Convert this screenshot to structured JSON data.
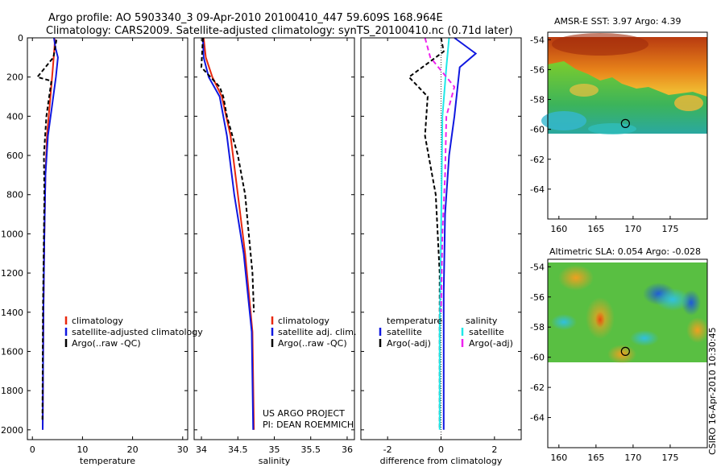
{
  "header": {
    "line1": "Argo profile: AO 5903340_3 09-Apr-2010 20100410_447 59.609S 168.964E",
    "line2": "Climatology: CARS2009. Satellite-adjusted climatology: synTS_20100410.nc (0.71d later)"
  },
  "footer": {
    "project": "US ARGO PROJECT",
    "pi": "PI: DEAN ROEMMICH",
    "stamp": "CSIRO 16-Apr-2010 10:30:45"
  },
  "colors": {
    "red": "#e8280e",
    "blue": "#1018e0",
    "black": "#000000",
    "cyan": "#20e8e8",
    "magenta": "#ee22ee"
  },
  "chart_data": [
    {
      "type": "line",
      "id": "temperature",
      "xlabel": "temperature",
      "xlim": [
        -1,
        31
      ],
      "ylim": [
        2050,
        0
      ],
      "xticks": [
        0,
        10,
        20,
        30
      ],
      "yticks": [
        0,
        200,
        400,
        600,
        800,
        1000,
        1200,
        1400,
        1600,
        1800,
        2000
      ],
      "legend": [
        "climatology",
        "satellite-adjusted climatology",
        "Argo(..raw -QC)"
      ],
      "series": [
        {
          "name": "climatology",
          "color": "red",
          "dash": "",
          "points": [
            [
              4.5,
              5
            ],
            [
              4.4,
              50
            ],
            [
              4.1,
              150
            ],
            [
              3.6,
              300
            ],
            [
              2.9,
              500
            ],
            [
              2.6,
              700
            ],
            [
              2.4,
              1000
            ],
            [
              2.2,
              1400
            ],
            [
              2.05,
              2000
            ]
          ]
        },
        {
          "name": "satellite-adjusted climatology",
          "color": "blue",
          "dash": "",
          "points": [
            [
              4.3,
              0
            ],
            [
              4.6,
              50
            ],
            [
              5.1,
              100
            ],
            [
              4.7,
              200
            ],
            [
              3.9,
              350
            ],
            [
              3.1,
              500
            ],
            [
              2.6,
              700
            ],
            [
              2.4,
              1000
            ],
            [
              2.2,
              1400
            ],
            [
              2.05,
              2000
            ]
          ]
        },
        {
          "name": "Argo(..raw -QC)",
          "color": "black",
          "dash": "5,3",
          "points": [
            [
              4.8,
              10
            ],
            [
              4.2,
              100
            ],
            [
              1.0,
              200
            ],
            [
              3.8,
              220
            ],
            [
              2.8,
              400
            ],
            [
              2.3,
              600
            ],
            [
              2.4,
              800
            ],
            [
              2.3,
              1000
            ],
            [
              2.1,
              1400
            ],
            [
              2.0,
              1950
            ]
          ]
        }
      ]
    },
    {
      "type": "line",
      "id": "salinity",
      "xlabel": "salinity",
      "xlim": [
        33.9,
        36.1
      ],
      "ylim": [
        2050,
        0
      ],
      "xticks": [
        34,
        34.5,
        35,
        35.5,
        36
      ],
      "yticks": [
        0,
        200,
        400,
        600,
        800,
        1000,
        1200,
        1400,
        1600,
        1800,
        2000
      ],
      "legend": [
        "climatology",
        "satellite adj. clim.",
        "Argo(..raw -QC)"
      ],
      "series": [
        {
          "name": "climatology",
          "color": "red",
          "dash": "",
          "points": [
            [
              34.03,
              0
            ],
            [
              34.06,
              100
            ],
            [
              34.15,
              200
            ],
            [
              34.28,
              300
            ],
            [
              34.4,
              500
            ],
            [
              34.5,
              800
            ],
            [
              34.6,
              1100
            ],
            [
              34.7,
              1500
            ],
            [
              34.72,
              2000
            ]
          ]
        },
        {
          "name": "satellite adj. clim.",
          "color": "blue",
          "dash": "",
          "points": [
            [
              34.02,
              0
            ],
            [
              34.03,
              100
            ],
            [
              34.1,
              200
            ],
            [
              34.25,
              300
            ],
            [
              34.35,
              500
            ],
            [
              34.45,
              800
            ],
            [
              34.58,
              1100
            ],
            [
              34.69,
              1500
            ],
            [
              34.71,
              2000
            ]
          ]
        },
        {
          "name": "Argo(..raw -QC)",
          "color": "black",
          "dash": "5,3",
          "points": [
            [
              34.02,
              0
            ],
            [
              34.0,
              150
            ],
            [
              34.25,
              250
            ],
            [
              34.3,
              300
            ],
            [
              34.35,
              400
            ],
            [
              34.5,
              600
            ],
            [
              34.6,
              800
            ],
            [
              34.65,
              1000
            ],
            [
              34.7,
              1200
            ],
            [
              34.72,
              1400
            ]
          ]
        }
      ]
    },
    {
      "type": "line",
      "id": "difference",
      "xlabel": "difference from climatology",
      "xlim": [
        -3,
        3
      ],
      "ylim": [
        2050,
        0
      ],
      "xticks": [
        -2,
        0,
        2
      ],
      "yticks": [
        0,
        200,
        400,
        600,
        800,
        1000,
        1200,
        1400,
        1600,
        1800,
        2000
      ],
      "legend_headers": [
        "temperature",
        "salinity"
      ],
      "legend": [
        "satellite",
        "Argo(-adj)",
        "satellite",
        "Argo(-adj)"
      ],
      "series": [
        {
          "name": "temperature satellite",
          "color": "blue",
          "dash": "",
          "points": [
            [
              0.5,
              0
            ],
            [
              1.3,
              80
            ],
            [
              0.7,
              150
            ],
            [
              0.5,
              400
            ],
            [
              0.3,
              600
            ],
            [
              0.15,
              900
            ],
            [
              0.1,
              1300
            ],
            [
              0.1,
              2000
            ]
          ]
        },
        {
          "name": "temperature Argo(-adj)",
          "color": "black",
          "dash": "5,3",
          "points": [
            [
              0.0,
              0
            ],
            [
              0.1,
              70
            ],
            [
              -1.2,
              200
            ],
            [
              -0.5,
              300
            ],
            [
              -0.6,
              500
            ],
            [
              -0.2,
              800
            ],
            [
              -0.05,
              1200
            ],
            [
              -0.05,
              2000
            ]
          ]
        },
        {
          "name": "salinity satellite",
          "color": "cyan",
          "dash": "",
          "points": [
            [
              0.3,
              0
            ],
            [
              0.2,
              150
            ],
            [
              0.05,
              400
            ],
            [
              0.0,
              1000
            ],
            [
              -0.05,
              1500
            ],
            [
              -0.05,
              2000
            ]
          ]
        },
        {
          "name": "salinity Argo(-adj)",
          "color": "magenta",
          "dash": "6,4",
          "points": [
            [
              -0.6,
              0
            ],
            [
              -0.4,
              100
            ],
            [
              0.5,
              250
            ],
            [
              0.2,
              400
            ],
            [
              0.15,
              700
            ],
            [
              0.05,
              1000
            ],
            [
              0.0,
              1400
            ]
          ]
        }
      ]
    },
    {
      "type": "heatmap",
      "id": "sst",
      "title": "AMSR-E SST: 3.97 Argo: 4.39",
      "xlim": [
        158.5,
        180
      ],
      "ylim": [
        -66,
        -53.5
      ],
      "xticks": [
        160,
        165,
        170,
        175
      ],
      "yticks": [
        -54,
        -56,
        -58,
        -60,
        -62,
        -64
      ],
      "data_ylim": [
        -60,
        -53.5
      ],
      "marker": [
        168.964,
        -59.609
      ]
    },
    {
      "type": "heatmap",
      "id": "sla",
      "title": "Altimetric SLA: 0.054 Argo: -0.028",
      "xlim": [
        158.5,
        180
      ],
      "ylim": [
        -66,
        -53.5
      ],
      "xticks": [
        160,
        165,
        170,
        175
      ],
      "yticks": [
        -54,
        -56,
        -58,
        -60,
        -62,
        -64
      ],
      "data_ylim": [
        -60,
        -53.5
      ],
      "marker": [
        168.964,
        -59.609
      ]
    }
  ]
}
